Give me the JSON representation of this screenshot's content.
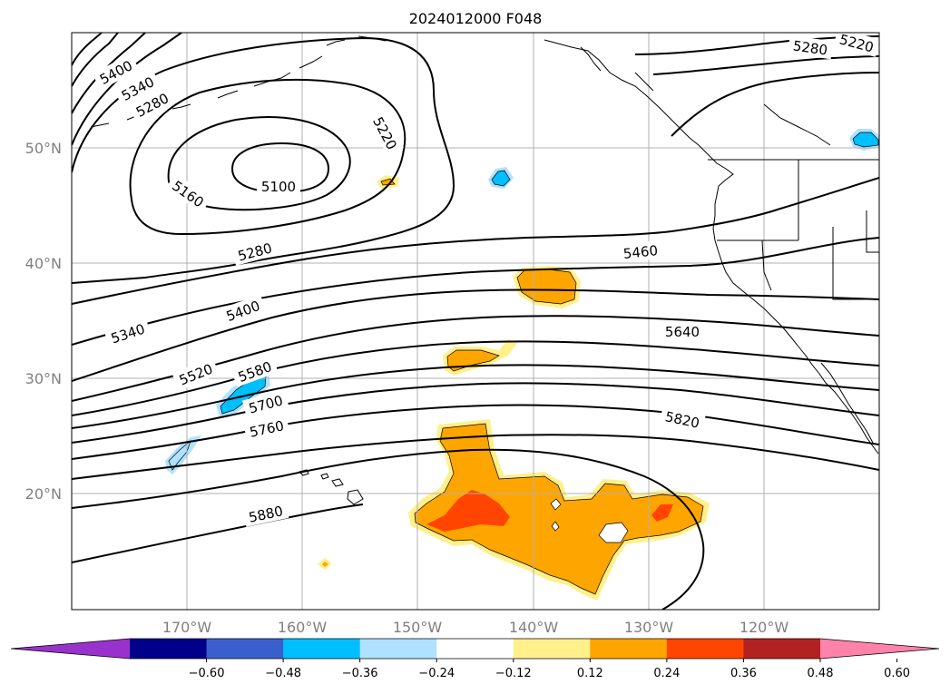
{
  "title": "2024012000 F048",
  "map": {
    "lat_labels": [
      "50°N",
      "40°N",
      "30°N",
      "20°N"
    ],
    "lon_labels": [
      "170°W",
      "160°W",
      "150°W",
      "140°W",
      "130°W",
      "120°W"
    ],
    "extent": {
      "lon": [
        -180,
        -110
      ],
      "lat": [
        10,
        60
      ]
    },
    "gridlines": true
  },
  "contours": {
    "field": "height",
    "color": "#000000",
    "labels": [
      {
        "id": "c5400a",
        "text": "5400"
      },
      {
        "id": "c5340a",
        "text": "5340"
      },
      {
        "id": "c5280a",
        "text": "5280"
      },
      {
        "id": "c5220a",
        "text": "5220"
      },
      {
        "id": "c5100",
        "text": "5100"
      },
      {
        "id": "c5160",
        "text": "5160"
      },
      {
        "id": "c5280b",
        "text": "5280"
      },
      {
        "id": "c5220b",
        "text": "5220"
      },
      {
        "id": "c5280c",
        "text": "5280"
      },
      {
        "id": "c5460",
        "text": "5460"
      },
      {
        "id": "c5400b",
        "text": "5400"
      },
      {
        "id": "c5340b",
        "text": "5340"
      },
      {
        "id": "c5640",
        "text": "5640"
      },
      {
        "id": "c5520",
        "text": "5520"
      },
      {
        "id": "c5580",
        "text": "5580"
      },
      {
        "id": "c5700",
        "text": "5700"
      },
      {
        "id": "c5760",
        "text": "5760"
      },
      {
        "id": "c5820",
        "text": "5820"
      },
      {
        "id": "c5880",
        "text": "5880"
      }
    ]
  },
  "colorbar": {
    "ticks": [
      "−0.60",
      "−0.48",
      "−0.36",
      "−0.24",
      "−0.12",
      "0.12",
      "0.24",
      "0.36",
      "0.48",
      "0.60"
    ],
    "colors": [
      "#9932cc",
      "#00008b",
      "#3a5fcd",
      "#00bfff",
      "#b0e2ff",
      "#ffffff",
      "#fff08c",
      "#ffa500",
      "#ff4500",
      "#b22222",
      "#ff82ab"
    ],
    "extend": "both"
  },
  "colors": {
    "orange": "#ffa500",
    "light_yellow": "#fff08c",
    "red_orange": "#ff4500",
    "deep_sky_blue": "#00bfff",
    "light_blue": "#b0e2ff",
    "grid": "#b0b0b0"
  }
}
